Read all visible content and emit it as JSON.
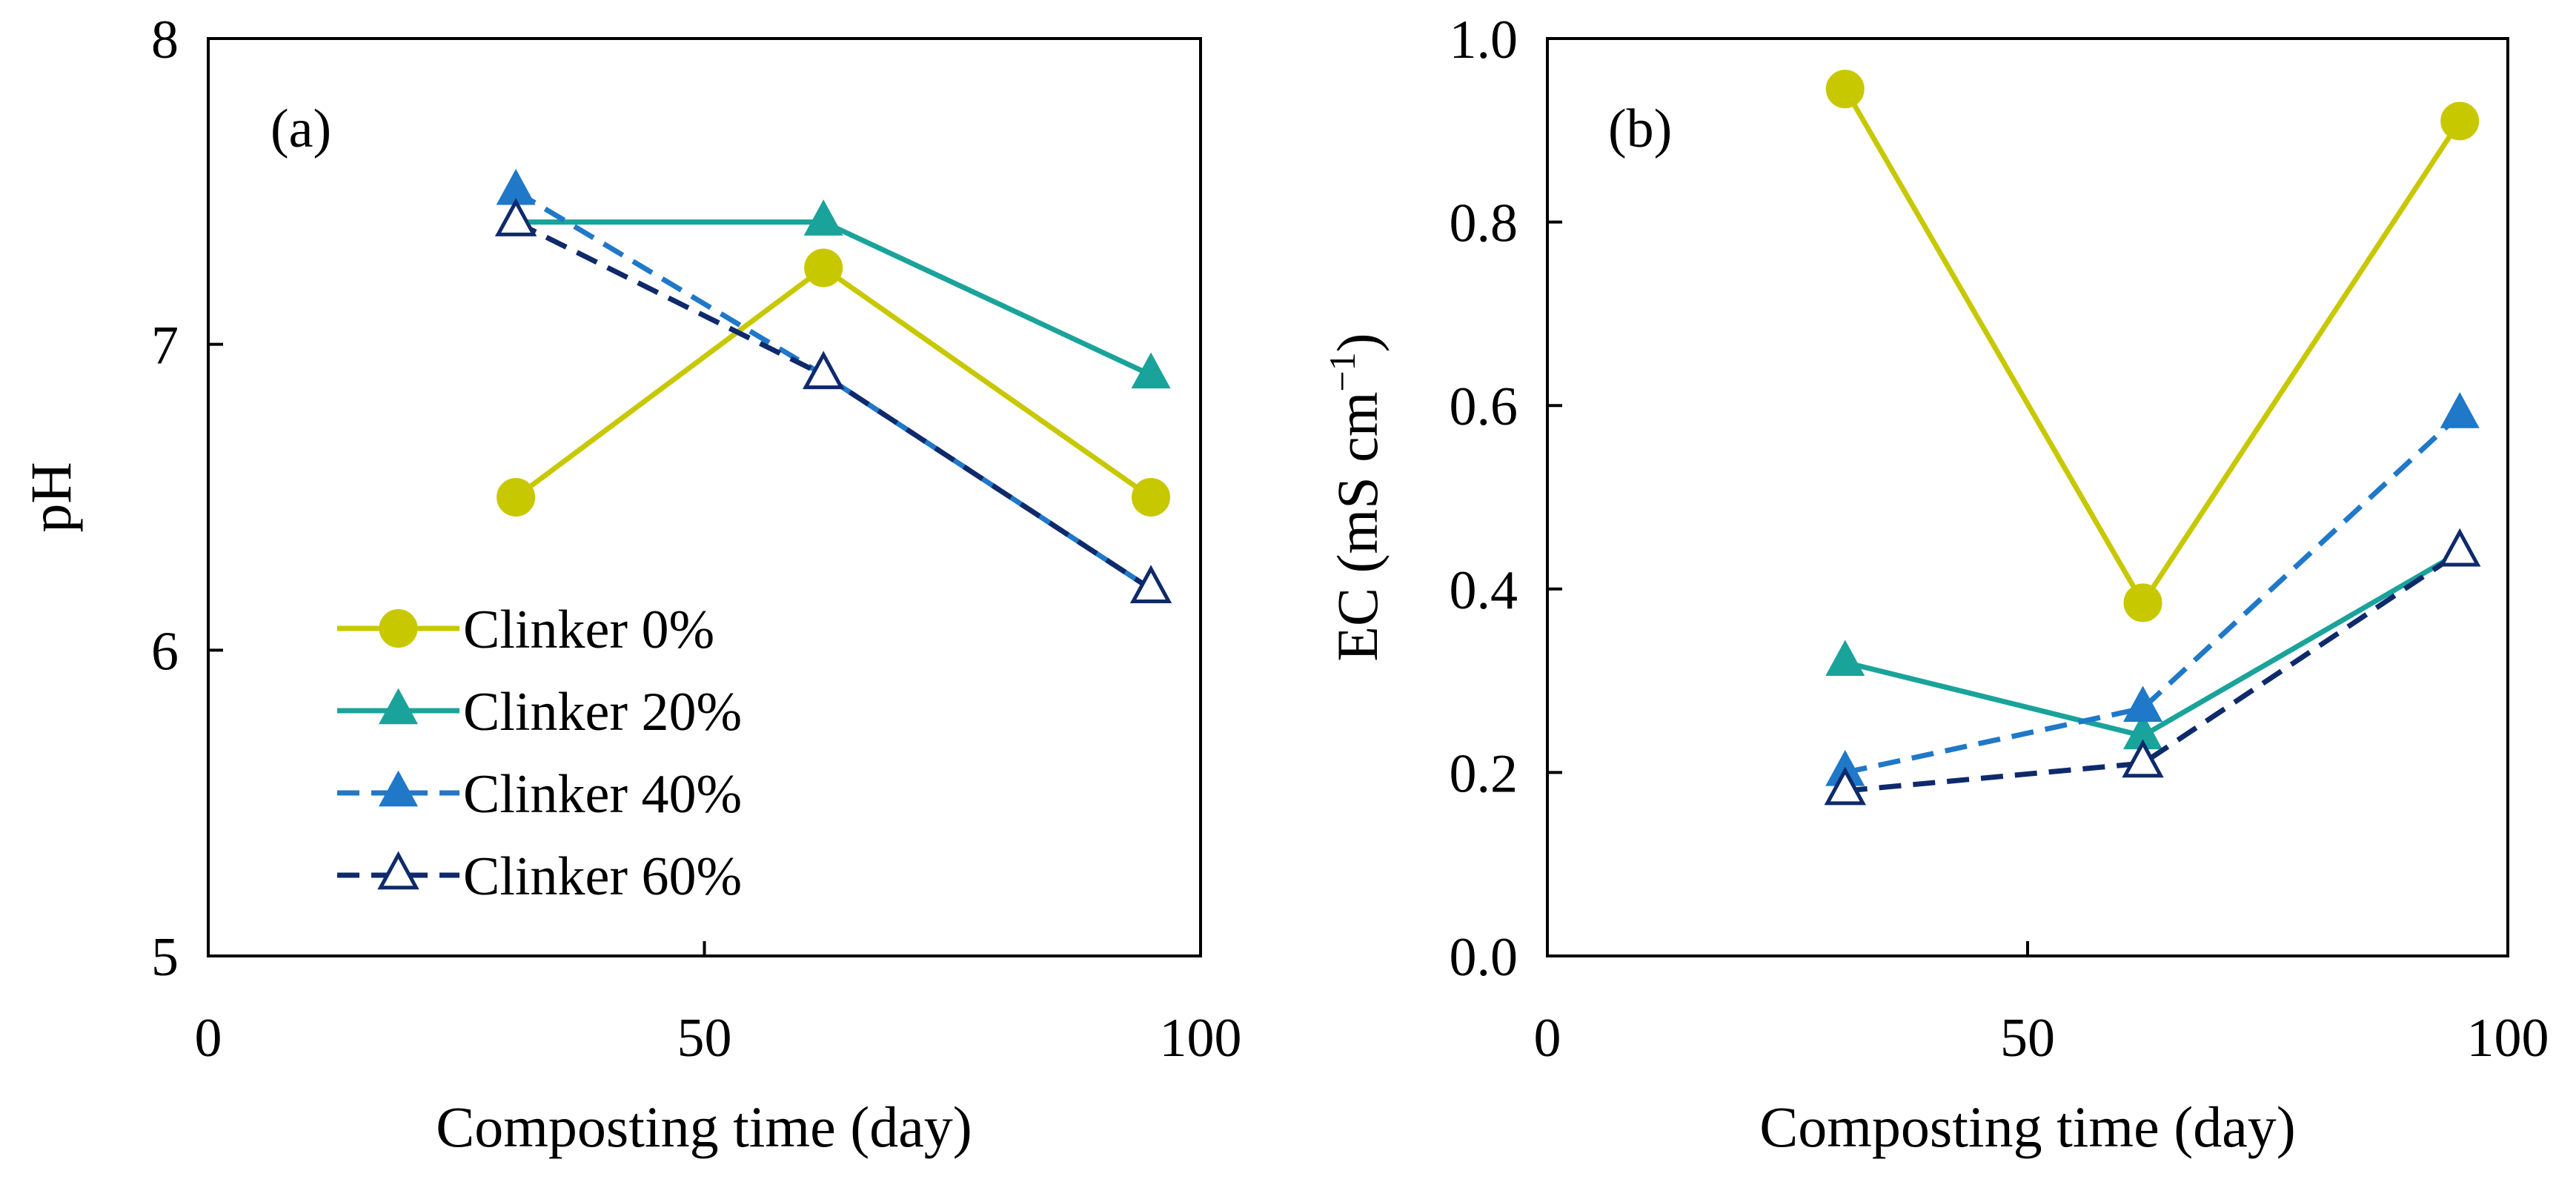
{
  "chart_data": [
    {
      "type": "line",
      "panel_label": "(a)",
      "xlabel": "Composting time (day)",
      "ylabel": "pH",
      "xlim": [
        0,
        100
      ],
      "ylim": [
        5,
        8
      ],
      "xticks": [
        0,
        50,
        100
      ],
      "yticks": [
        5,
        6,
        7,
        8
      ],
      "grid": false,
      "legend_position": "lower-left",
      "x": [
        31,
        62,
        95
      ],
      "series": [
        {
          "name": "Clinker 0%",
          "values": [
            6.5,
            7.25,
            6.5
          ],
          "color": "#c8c800",
          "marker": "circle",
          "dash": "solid",
          "filled": true
        },
        {
          "name": "Clinker 20%",
          "values": [
            7.4,
            7.4,
            6.9
          ],
          "color": "#1aa39a",
          "marker": "triangle",
          "dash": "solid",
          "filled": true
        },
        {
          "name": "Clinker 40%",
          "values": [
            7.5,
            6.9,
            6.2
          ],
          "color": "#1f78c8",
          "marker": "triangle",
          "dash": "dashed",
          "filled": true
        },
        {
          "name": "Clinker 60%",
          "values": [
            7.4,
            6.9,
            6.2
          ],
          "color": "#0f2a6b",
          "marker": "triangle",
          "dash": "dashed",
          "filled": false
        }
      ]
    },
    {
      "type": "line",
      "panel_label": "(b)",
      "xlabel": "Composting time (day)",
      "ylabel": "EC (mS cm",
      "ylabel_superscript": "−1",
      "ylabel_suffix": ")",
      "xlim": [
        0,
        100
      ],
      "ylim": [
        0,
        1
      ],
      "xticks": [
        0,
        50,
        100
      ],
      "yticks": [
        0.0,
        0.2,
        0.4,
        0.6,
        0.8,
        1.0
      ],
      "grid": false,
      "x": [
        31,
        62,
        95
      ],
      "series": [
        {
          "name": "Clinker 0%",
          "values": [
            0.945,
            0.385,
            0.91
          ],
          "color": "#c8c800",
          "marker": "circle",
          "dash": "solid",
          "filled": true
        },
        {
          "name": "Clinker 20%",
          "values": [
            0.32,
            0.24,
            0.44
          ],
          "color": "#1aa39a",
          "marker": "triangle",
          "dash": "solid",
          "filled": true
        },
        {
          "name": "Clinker 40%",
          "values": [
            0.2,
            0.27,
            0.59
          ],
          "color": "#1f78c8",
          "marker": "triangle",
          "dash": "dashed",
          "filled": true
        },
        {
          "name": "Clinker 60%",
          "values": [
            0.18,
            0.21,
            0.44
          ],
          "color": "#0f2a6b",
          "marker": "triangle",
          "dash": "dashed",
          "filled": false
        }
      ]
    }
  ]
}
